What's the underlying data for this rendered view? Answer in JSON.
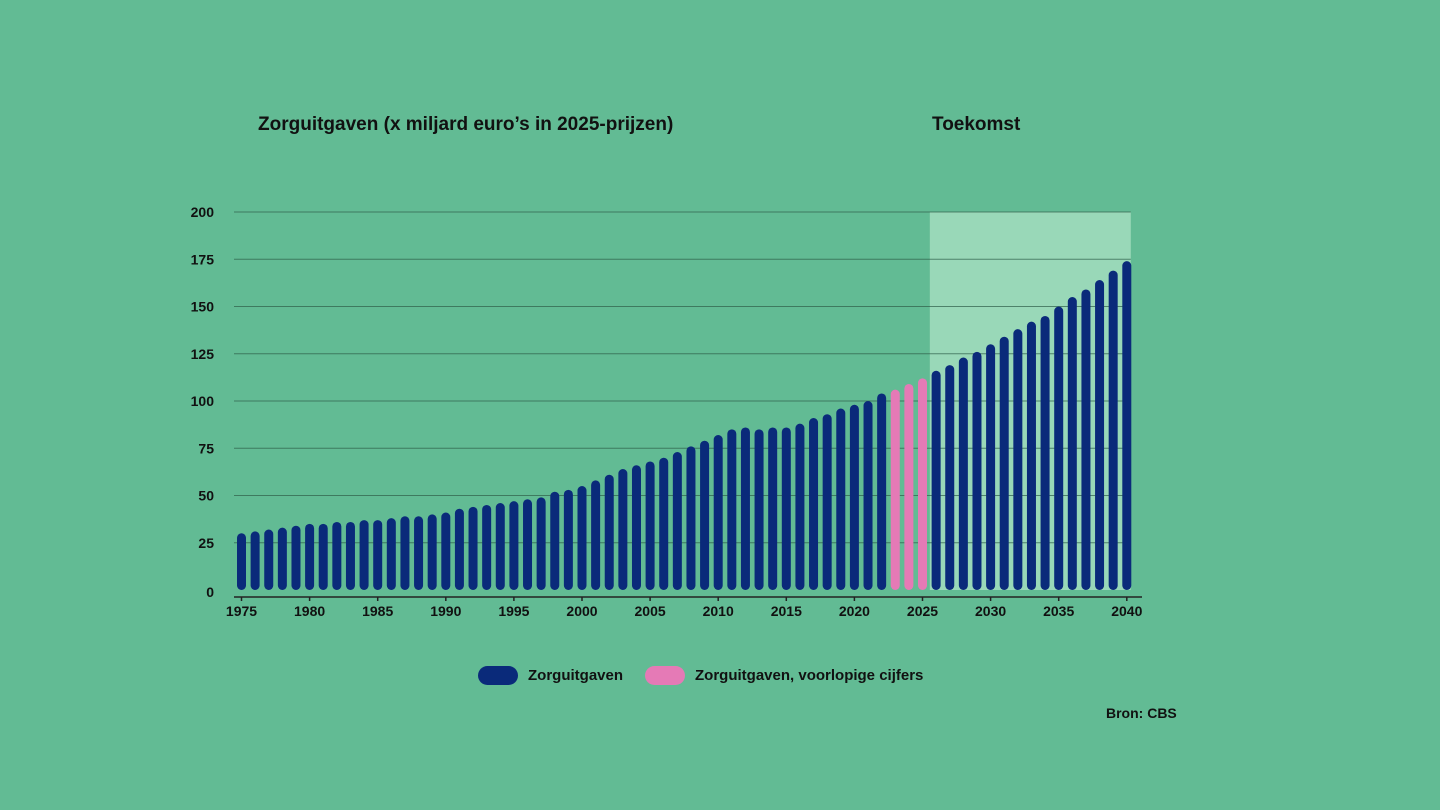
{
  "colors": {
    "background": "#62bb94",
    "series_actual": "#0a2a7a",
    "series_provisional": "#e57ab6",
    "future_band": "#99d8b8",
    "gridline": "#2f5f4a",
    "text": "#111111"
  },
  "future": {
    "label": "Toekomst",
    "from_year": 2026,
    "to_year": 2040
  },
  "legend": [
    {
      "label": "Zorguitgaven",
      "color": "#0a2a7a"
    },
    {
      "label": "Zorguitgaven, voorlopige cijfers",
      "color": "#e57ab6"
    }
  ],
  "source": "Bron: CBS",
  "chart_data": {
    "type": "bar",
    "title": "Zorguitgaven (x miljard euro’s in 2025-prijzen)",
    "xlabel": "",
    "ylabel": "",
    "ylim": [
      0,
      200
    ],
    "yticks": [
      0,
      25,
      50,
      75,
      100,
      125,
      150,
      175,
      200
    ],
    "xticks": [
      1975,
      1980,
      1985,
      1990,
      1995,
      2000,
      2005,
      2010,
      2015,
      2020,
      2025,
      2030,
      2035,
      2040
    ],
    "grid": true,
    "legend_position": "bottom",
    "categories": [
      1975,
      1976,
      1977,
      1978,
      1979,
      1980,
      1981,
      1982,
      1983,
      1984,
      1985,
      1986,
      1987,
      1988,
      1989,
      1990,
      1991,
      1992,
      1993,
      1994,
      1995,
      1996,
      1997,
      1998,
      1999,
      2000,
      2001,
      2002,
      2003,
      2004,
      2005,
      2006,
      2007,
      2008,
      2009,
      2010,
      2011,
      2012,
      2013,
      2014,
      2015,
      2016,
      2017,
      2018,
      2019,
      2020,
      2021,
      2022,
      2023,
      2024,
      2025,
      2026,
      2027,
      2028,
      2029,
      2030,
      2031,
      2032,
      2033,
      2034,
      2035,
      2036,
      2037,
      2038,
      2039,
      2040
    ],
    "series": [
      {
        "name": "Zorguitgaven",
        "color": "#0a2a7a",
        "values": [
          30,
          31,
          32,
          33,
          34,
          35,
          35,
          36,
          36,
          37,
          37,
          38,
          39,
          39,
          40,
          41,
          43,
          44,
          45,
          46,
          47,
          48,
          49,
          52,
          53,
          55,
          58,
          61,
          64,
          66,
          68,
          70,
          73,
          76,
          79,
          82,
          85,
          86,
          85,
          86,
          86,
          88,
          91,
          93,
          96,
          98,
          100,
          104,
          null,
          null,
          null,
          116,
          119,
          123,
          126,
          130,
          134,
          138,
          142,
          145,
          150,
          155,
          159,
          164,
          169,
          174
        ]
      },
      {
        "name": "Zorguitgaven, voorlopige cijfers",
        "color": "#e57ab6",
        "values": [
          null,
          null,
          null,
          null,
          null,
          null,
          null,
          null,
          null,
          null,
          null,
          null,
          null,
          null,
          null,
          null,
          null,
          null,
          null,
          null,
          null,
          null,
          null,
          null,
          null,
          null,
          null,
          null,
          null,
          null,
          null,
          null,
          null,
          null,
          null,
          null,
          null,
          null,
          null,
          null,
          null,
          null,
          null,
          null,
          null,
          null,
          null,
          null,
          106,
          109,
          112,
          null,
          null,
          null,
          null,
          null,
          null,
          null,
          null,
          null,
          null,
          null,
          null,
          null,
          null,
          null
        ]
      }
    ]
  }
}
